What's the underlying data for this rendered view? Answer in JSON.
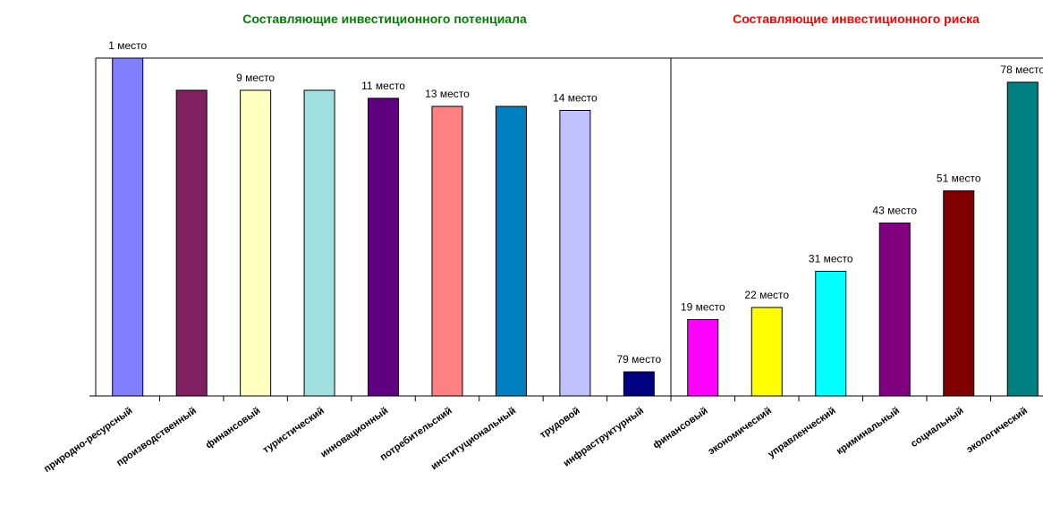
{
  "chart_data": [
    {
      "type": "bar",
      "title": "Составляющие инвестиционного потенциала",
      "title_color": "#008000",
      "categories": [
        "природно-ресурсный",
        "производственный",
        "финансовый",
        "туристический",
        "инновационный",
        "потребительский",
        "институциональный",
        "трудовой",
        "инфраструктурный"
      ],
      "values": [
        1,
        9,
        9,
        9,
        11,
        13,
        13,
        14,
        79
      ],
      "value_labels": [
        "1 место",
        null,
        "9 место",
        null,
        "11 место",
        "13 место",
        null,
        "14 место",
        "79 место"
      ],
      "colors": [
        "#8080ff",
        "#802060",
        "#ffffc0",
        "#a0e0e0",
        "#600080",
        "#ff8080",
        "#0080c0",
        "#c0c0ff",
        "#000080"
      ],
      "ylim": [
        85,
        1
      ]
    },
    {
      "type": "bar",
      "title": "Составляющие инвестиционного риска",
      "title_color": "#ff0000",
      "categories": [
        "финансовый",
        "экономический",
        "управленческий",
        "криминальный",
        "социальный",
        "экологический"
      ],
      "values": [
        19,
        22,
        31,
        43,
        51,
        78
      ],
      "value_labels": [
        "19 место",
        "22 место",
        "31 место",
        "43 место",
        "51 место",
        "78 место"
      ],
      "colors": [
        "#ff00ff",
        "#ffff00",
        "#00ffff",
        "#800080",
        "#800000",
        "#008080"
      ],
      "ylim": [
        0,
        84
      ]
    }
  ]
}
